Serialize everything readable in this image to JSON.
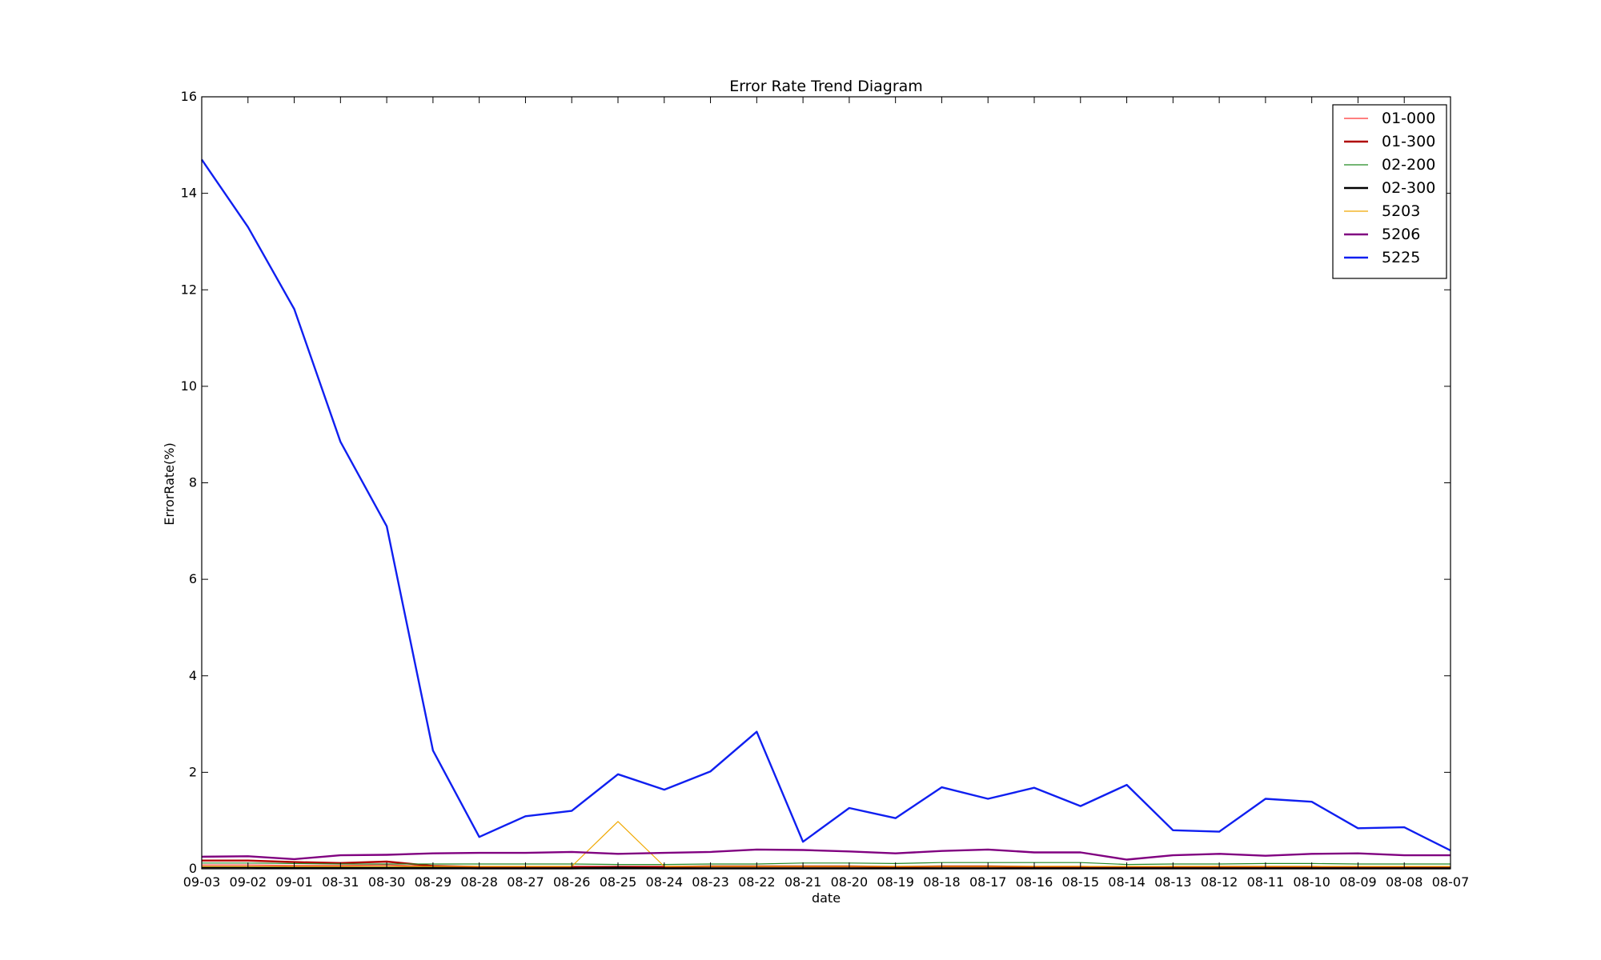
{
  "chart_data": {
    "type": "line",
    "title": "Error Rate Trend Diagram",
    "xlabel": "date",
    "ylabel": "ErrorRate(%)",
    "ylim": [
      0,
      16
    ],
    "yticks": [
      0,
      2,
      4,
      6,
      8,
      10,
      12,
      14,
      16
    ],
    "grid": false,
    "legend_position": "top-right",
    "categories": [
      "09-03",
      "09-02",
      "09-01",
      "08-31",
      "08-30",
      "08-29",
      "08-28",
      "08-27",
      "08-26",
      "08-25",
      "08-24",
      "08-23",
      "08-22",
      "08-21",
      "08-20",
      "08-19",
      "08-18",
      "08-17",
      "08-16",
      "08-15",
      "08-14",
      "08-13",
      "08-12",
      "08-11",
      "08-10",
      "08-09",
      "08-08",
      "08-07"
    ],
    "series": [
      {
        "name": "01-000",
        "color": "#ff3333",
        "width": 1.2,
        "values": [
          0.08,
          0.08,
          0.07,
          0.07,
          0.08,
          0.05,
          0.04,
          0.04,
          0.04,
          0.05,
          0.05,
          0.05,
          0.05,
          0.05,
          0.05,
          0.05,
          0.05,
          0.05,
          0.05,
          0.05,
          0.04,
          0.04,
          0.05,
          0.05,
          0.05,
          0.04,
          0.04,
          0.04
        ]
      },
      {
        "name": "01-300",
        "color": "#b00000",
        "width": 2.4,
        "values": [
          0.17,
          0.17,
          0.14,
          0.12,
          0.15,
          0.06,
          0.04,
          0.04,
          0.04,
          0.04,
          0.04,
          0.05,
          0.05,
          0.05,
          0.05,
          0.04,
          0.05,
          0.05,
          0.04,
          0.04,
          0.03,
          0.04,
          0.04,
          0.04,
          0.04,
          0.03,
          0.03,
          0.03
        ]
      },
      {
        "name": "02-200",
        "color": "#228b22",
        "width": 1.2,
        "values": [
          0.12,
          0.12,
          0.11,
          0.1,
          0.1,
          0.1,
          0.1,
          0.1,
          0.1,
          0.09,
          0.09,
          0.1,
          0.1,
          0.12,
          0.12,
          0.11,
          0.13,
          0.13,
          0.13,
          0.13,
          0.09,
          0.1,
          0.1,
          0.11,
          0.11,
          0.1,
          0.1,
          0.1
        ]
      },
      {
        "name": "02-300",
        "color": "#000000",
        "width": 2.4,
        "values": [
          0.03,
          0.03,
          0.02,
          0.02,
          0.02,
          0.02,
          0.01,
          0.01,
          0.01,
          0.02,
          0.01,
          0.01,
          0.01,
          0.01,
          0.01,
          0.01,
          0.01,
          0.01,
          0.01,
          0.01,
          0.01,
          0.01,
          0.01,
          0.01,
          0.01,
          0.01,
          0.01,
          0.01
        ]
      },
      {
        "name": "5203",
        "color": "#f0a800",
        "width": 1.2,
        "values": [
          0.05,
          0.05,
          0.05,
          0.05,
          0.05,
          0.05,
          0.05,
          0.05,
          0.05,
          0.98,
          0.05,
          0.05,
          0.05,
          0.05,
          0.05,
          0.05,
          0.05,
          0.05,
          0.05,
          0.05,
          0.05,
          0.05,
          0.05,
          0.05,
          0.05,
          0.05,
          0.05,
          0.05
        ]
      },
      {
        "name": "5206",
        "color": "#800080",
        "width": 2.4,
        "values": [
          0.25,
          0.26,
          0.2,
          0.28,
          0.29,
          0.32,
          0.33,
          0.33,
          0.35,
          0.31,
          0.33,
          0.35,
          0.4,
          0.39,
          0.36,
          0.32,
          0.37,
          0.4,
          0.34,
          0.34,
          0.19,
          0.28,
          0.31,
          0.27,
          0.31,
          0.32,
          0.28,
          0.28
        ]
      },
      {
        "name": "5225",
        "color": "#0f1ff0",
        "width": 2.4,
        "values": [
          14.7,
          13.3,
          11.6,
          8.85,
          7.1,
          2.45,
          0.66,
          1.09,
          1.2,
          1.96,
          1.64,
          2.02,
          2.84,
          0.56,
          1.26,
          1.05,
          1.69,
          1.45,
          1.68,
          1.3,
          1.74,
          0.8,
          0.77,
          1.45,
          1.39,
          0.84,
          0.86,
          0.38
        ]
      }
    ]
  }
}
